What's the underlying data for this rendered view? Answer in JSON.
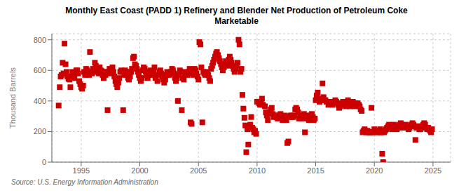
{
  "chart_data": {
    "type": "scatter",
    "title": "Monthly East Coast (PADD 1) Refinery and Blender Net Production of Petroleum Coke\nMarketable",
    "y_label": "Thousand Barrels",
    "annotations": [
      "Source: U.S. Energy Information Administration"
    ],
    "color": "#cc0000",
    "marker": "square",
    "grid": true,
    "xlim": [
      1992.5,
      2026.5
    ],
    "xticks": [
      1995,
      2000,
      2005,
      2010,
      2015,
      2020,
      2025
    ],
    "ylim": [
      0,
      840
    ],
    "yticks": [
      0,
      200,
      400,
      600,
      800
    ],
    "x": [
      1993.08,
      1993.17,
      1993.25,
      1993.33,
      1993.42,
      1993.5,
      1993.58,
      1993.67,
      1993.75,
      1993.83,
      1993.92,
      1994,
      1994.08,
      1994.17,
      1994.25,
      1994.33,
      1994.42,
      1994.5,
      1994.58,
      1994.67,
      1994.75,
      1994.83,
      1994.92,
      1995,
      1995.08,
      1995.17,
      1995.25,
      1995.33,
      1995.42,
      1995.5,
      1995.58,
      1995.67,
      1995.75,
      1995.83,
      1995.92,
      1996,
      1996.08,
      1996.17,
      1996.25,
      1996.33,
      1996.42,
      1996.5,
      1996.58,
      1996.67,
      1996.75,
      1996.83,
      1996.92,
      1997,
      1997.08,
      1997.17,
      1997.25,
      1997.33,
      1997.42,
      1997.5,
      1997.58,
      1997.67,
      1997.75,
      1997.83,
      1997.92,
      1998,
      1998.08,
      1998.17,
      1998.25,
      1998.33,
      1998.42,
      1998.5,
      1998.58,
      1998.67,
      1998.75,
      1998.83,
      1998.92,
      1999,
      1999.08,
      1999.17,
      1999.25,
      1999.33,
      1999.42,
      1999.5,
      1999.58,
      1999.67,
      1999.75,
      1999.83,
      1999.92,
      2000,
      2000.08,
      2000.17,
      2000.25,
      2000.33,
      2000.42,
      2000.5,
      2000.58,
      2000.67,
      2000.75,
      2000.83,
      2000.92,
      2001,
      2001.08,
      2001.17,
      2001.25,
      2001.33,
      2001.42,
      2001.5,
      2001.58,
      2001.67,
      2001.75,
      2001.83,
      2001.92,
      2002,
      2002.08,
      2002.17,
      2002.25,
      2002.33,
      2002.42,
      2002.5,
      2002.58,
      2002.67,
      2002.75,
      2002.83,
      2002.92,
      2003,
      2003.08,
      2003.17,
      2003.25,
      2003.33,
      2003.42,
      2003.5,
      2003.58,
      2003.67,
      2003.75,
      2003.83,
      2003.92,
      2004,
      2004.08,
      2004.17,
      2004.25,
      2004.33,
      2004.42,
      2004.5,
      2004.58,
      2004.67,
      2004.75,
      2004.83,
      2004.92,
      2005,
      2005.08,
      2005.17,
      2005.25,
      2005.33,
      2005.42,
      2005.5,
      2005.58,
      2005.67,
      2005.75,
      2005.83,
      2005.92,
      2006,
      2006.08,
      2006.17,
      2006.25,
      2006.33,
      2006.42,
      2006.5,
      2006.58,
      2006.67,
      2006.75,
      2006.83,
      2006.92,
      2007,
      2007.08,
      2007.17,
      2007.25,
      2007.33,
      2007.42,
      2007.5,
      2007.58,
      2007.67,
      2007.75,
      2007.83,
      2007.92,
      2008,
      2008.08,
      2008.17,
      2008.25,
      2008.33,
      2008.42,
      2008.5,
      2008.58,
      2008.67,
      2008.75,
      2008.83,
      2008.92,
      2009,
      2009.08,
      2009.17,
      2009.25,
      2009.33,
      2009.42,
      2009.5,
      2009.58,
      2009.67,
      2009.75,
      2009.83,
      2009.92,
      2010,
      2010.08,
      2010.17,
      2010.25,
      2010.33,
      2010.42,
      2010.5,
      2010.67,
      2010.75,
      2010.83,
      2010.92,
      2011,
      2011.08,
      2011.17,
      2011.25,
      2011.33,
      2011.42,
      2011.5,
      2011.58,
      2011.67,
      2011.75,
      2011.83,
      2011.92,
      2012,
      2012.08,
      2012.17,
      2012.25,
      2012.33,
      2012.42,
      2012.5,
      2012.58,
      2012.67,
      2012.75,
      2012.83,
      2012.92,
      2013,
      2013.08,
      2013.17,
      2013.25,
      2013.33,
      2013.42,
      2013.5,
      2013.58,
      2013.67,
      2013.75,
      2013.83,
      2013.92,
      2014,
      2014.08,
      2014.17,
      2014.25,
      2014.33,
      2014.42,
      2014.5,
      2014.58,
      2014.67,
      2014.75,
      2014.83,
      2014.92,
      2015,
      2015.08,
      2015.17,
      2015.25,
      2015.33,
      2015.42,
      2015.5,
      2015.58,
      2015.67,
      2015.75,
      2015.83,
      2015.92,
      2016,
      2016.08,
      2016.17,
      2016.25,
      2016.33,
      2016.42,
      2016.5,
      2016.58,
      2016.67,
      2016.75,
      2016.83,
      2016.92,
      2017,
      2017.08,
      2017.17,
      2017.25,
      2017.33,
      2017.42,
      2017.5,
      2017.58,
      2017.67,
      2017.75,
      2017.83,
      2017.92,
      2018,
      2018.08,
      2018.17,
      2018.25,
      2018.33,
      2018.42,
      2018.5,
      2018.58,
      2018.67,
      2018.75,
      2018.83,
      2018.92,
      2019,
      2019.08,
      2019.17,
      2019.25,
      2019.33,
      2019.42,
      2019.5,
      2019.58,
      2019.67,
      2019.75,
      2019.83,
      2019.92,
      2020,
      2020.08,
      2020.17,
      2020.25,
      2020.33,
      2020.42,
      2020.5,
      2020.58,
      2020.67,
      2020.75,
      2020.83,
      2020.92,
      2021,
      2021.08,
      2021.17,
      2021.25,
      2021.33,
      2021.42,
      2021.5,
      2021.58,
      2021.67,
      2021.75,
      2021.83,
      2021.92,
      2022,
      2022.08,
      2022.17,
      2022.25,
      2022.33,
      2022.42,
      2022.5,
      2022.58,
      2022.67,
      2022.75,
      2022.83,
      2022.92,
      2023,
      2023.08,
      2023.17,
      2023.25,
      2023.33,
      2023.42,
      2023.5,
      2023.58,
      2023.67,
      2023.75,
      2023.83,
      2023.92,
      2024,
      2024.08,
      2024.17,
      2024.25,
      2024.33,
      2024.42,
      2024.5,
      2024.58,
      2024.67,
      2024.75,
      2024.83,
      2024.92
    ],
    "values": [
      370,
      490,
      560,
      570,
      650,
      580,
      775,
      640,
      590,
      560,
      545,
      540,
      490,
      560,
      590,
      560,
      550,
      580,
      600,
      600,
      580,
      530,
      510,
      490,
      480,
      500,
      590,
      570,
      610,
      600,
      580,
      570,
      720,
      590,
      580,
      610,
      590,
      650,
      630,
      610,
      590,
      580,
      620,
      600,
      595,
      570,
      550,
      590,
      570,
      590,
      340,
      590,
      610,
      580,
      600,
      620,
      590,
      560,
      530,
      510,
      490,
      520,
      550,
      590,
      600,
      590,
      340,
      570,
      600,
      590,
      570,
      550,
      540,
      560,
      590,
      610,
      680,
      690,
      640,
      630,
      610,
      590,
      570,
      550,
      530,
      550,
      600,
      620,
      610,
      590,
      570,
      550,
      570,
      590,
      600,
      580,
      570,
      590,
      620,
      550,
      570,
      530,
      570,
      590,
      600,
      580,
      560,
      540,
      520,
      540,
      570,
      590,
      580,
      570,
      580,
      590,
      610,
      600,
      580,
      550,
      530,
      550,
      400,
      570,
      600,
      590,
      340,
      550,
      540,
      570,
      590,
      580,
      570,
      590,
      610,
      260,
      250,
      580,
      570,
      610,
      600,
      580,
      560,
      540,
      785,
      770,
      620,
      260,
      590,
      580,
      570,
      590,
      580,
      570,
      550,
      530,
      610,
      630,
      650,
      670,
      690,
      710,
      720,
      700,
      680,
      660,
      640,
      620,
      600,
      620,
      640,
      660,
      650,
      630,
      670,
      690,
      670,
      650,
      630,
      610,
      590,
      610,
      630,
      650,
      800,
      770,
      590,
      610,
      440,
      350,
      290,
      240,
      65,
      215,
      115,
      225,
      245,
      295,
      225,
      215,
      195,
      205,
      185,
      395,
      395,
      385,
      375,
      395,
      415,
      375,
      365,
      325,
      305,
      275,
      325,
      315,
      345,
      355,
      315,
      295,
      305,
      305,
      295,
      285,
      295,
      305,
      315,
      295,
      275,
      295,
      305,
      285,
      275,
      125,
      135,
      295,
      305,
      295,
      305,
      295,
      305,
      345,
      355,
      345,
      325,
      285,
      295,
      285,
      295,
      305,
      315,
      195,
      285,
      305,
      285,
      275,
      295,
      305,
      315,
      295,
      275,
      285,
      405,
      435,
      455,
      415,
      395,
      415,
      405,
      515,
      425,
      405,
      405,
      395,
      395,
      375,
      385,
      395,
      385,
      375,
      385,
      395,
      405,
      395,
      385,
      375,
      355,
      365,
      375,
      385,
      395,
      385,
      375,
      365,
      385,
      405,
      385,
      365,
      375,
      385,
      395,
      385,
      365,
      385,
      375,
      385,
      375,
      365,
      345,
      335,
      195,
      205,
      215,
      205,
      195,
      205,
      195,
      195,
      195,
      355,
      195,
      195,
      215,
      205,
      205,
      195,
      205,
      195,
      215,
      195,
      55,
      0,
      195,
      205,
      215,
      225,
      235,
      245,
      235,
      225,
      215,
      235,
      245,
      235,
      225,
      215,
      235,
      225,
      245,
      255,
      245,
      235,
      225,
      235,
      245,
      235,
      225,
      215,
      225,
      235,
      245,
      255,
      245,
      235,
      145,
      225,
      235,
      225,
      215,
      215,
      225,
      235,
      245,
      255,
      245,
      225,
      215,
      225,
      215,
      205,
      195,
      215
    ]
  }
}
